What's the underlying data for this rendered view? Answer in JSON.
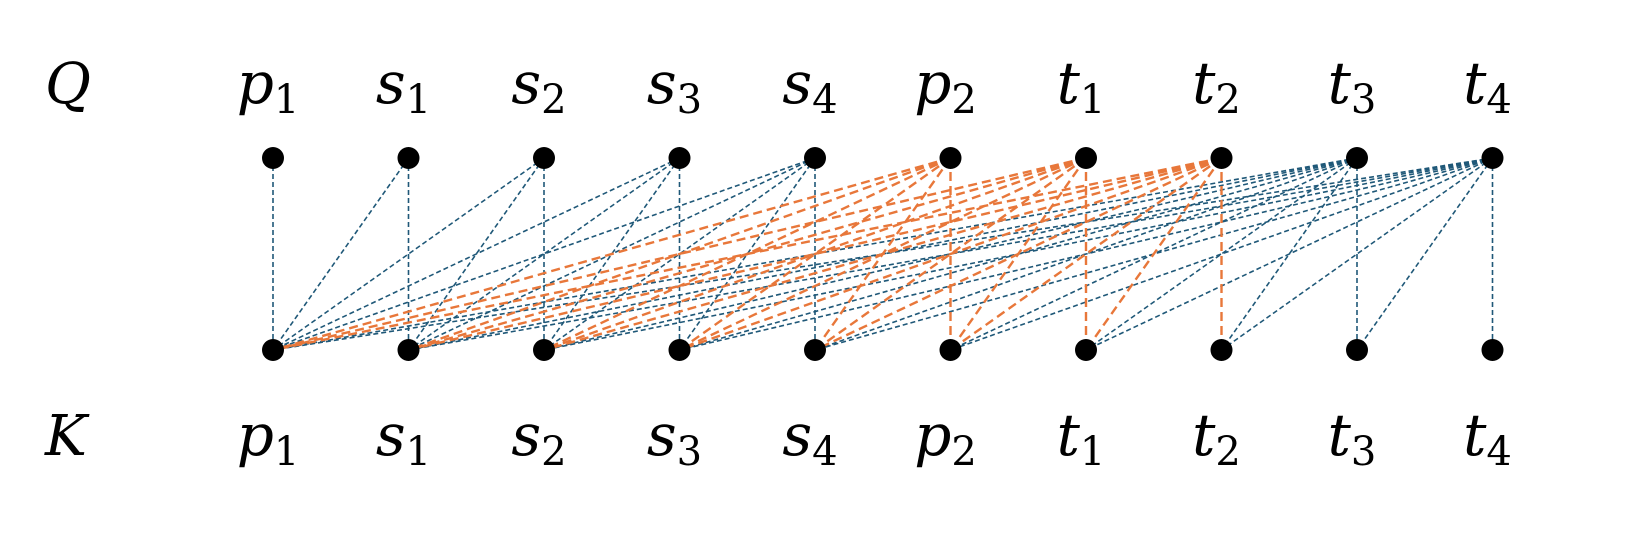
{
  "rows": {
    "top_label": "Q",
    "bottom_label": "K"
  },
  "tokens": [
    {
      "id": "p1",
      "base": "p",
      "sub": "1"
    },
    {
      "id": "s1",
      "base": "s",
      "sub": "1"
    },
    {
      "id": "s2",
      "base": "s",
      "sub": "2"
    },
    {
      "id": "s3",
      "base": "s",
      "sub": "3"
    },
    {
      "id": "s4",
      "base": "s",
      "sub": "4"
    },
    {
      "id": "p2",
      "base": "p",
      "sub": "2"
    },
    {
      "id": "t1",
      "base": "t",
      "sub": "1"
    },
    {
      "id": "t2",
      "base": "t",
      "sub": "2"
    },
    {
      "id": "t3",
      "base": "t",
      "sub": "3"
    },
    {
      "id": "t4",
      "base": "t",
      "sub": "4"
    }
  ],
  "colors": {
    "node": "#000000",
    "edge_blue": "#1f5878",
    "edge_orange": "#e8773a"
  },
  "edges": [
    {
      "q": 0,
      "k": 0,
      "color": "blue"
    },
    {
      "q": 1,
      "k": 0,
      "color": "blue"
    },
    {
      "q": 1,
      "k": 1,
      "color": "blue"
    },
    {
      "q": 2,
      "k": 0,
      "color": "blue"
    },
    {
      "q": 2,
      "k": 1,
      "color": "blue"
    },
    {
      "q": 2,
      "k": 2,
      "color": "blue"
    },
    {
      "q": 3,
      "k": 0,
      "color": "blue"
    },
    {
      "q": 3,
      "k": 1,
      "color": "blue"
    },
    {
      "q": 3,
      "k": 2,
      "color": "blue"
    },
    {
      "q": 3,
      "k": 3,
      "color": "blue"
    },
    {
      "q": 4,
      "k": 0,
      "color": "blue"
    },
    {
      "q": 4,
      "k": 1,
      "color": "blue"
    },
    {
      "q": 4,
      "k": 2,
      "color": "blue"
    },
    {
      "q": 4,
      "k": 3,
      "color": "blue"
    },
    {
      "q": 4,
      "k": 4,
      "color": "blue"
    },
    {
      "q": 5,
      "k": 0,
      "color": "orange"
    },
    {
      "q": 5,
      "k": 1,
      "color": "orange"
    },
    {
      "q": 5,
      "k": 2,
      "color": "orange"
    },
    {
      "q": 5,
      "k": 3,
      "color": "orange"
    },
    {
      "q": 5,
      "k": 4,
      "color": "orange"
    },
    {
      "q": 5,
      "k": 5,
      "color": "orange"
    },
    {
      "q": 6,
      "k": 0,
      "color": "orange"
    },
    {
      "q": 6,
      "k": 1,
      "color": "orange"
    },
    {
      "q": 6,
      "k": 2,
      "color": "orange"
    },
    {
      "q": 6,
      "k": 3,
      "color": "orange"
    },
    {
      "q": 6,
      "k": 4,
      "color": "orange"
    },
    {
      "q": 6,
      "k": 5,
      "color": "orange"
    },
    {
      "q": 6,
      "k": 6,
      "color": "orange"
    },
    {
      "q": 7,
      "k": 0,
      "color": "orange"
    },
    {
      "q": 7,
      "k": 1,
      "color": "orange"
    },
    {
      "q": 7,
      "k": 2,
      "color": "orange"
    },
    {
      "q": 7,
      "k": 3,
      "color": "orange"
    },
    {
      "q": 7,
      "k": 4,
      "color": "orange"
    },
    {
      "q": 7,
      "k": 5,
      "color": "orange"
    },
    {
      "q": 7,
      "k": 6,
      "color": "orange"
    },
    {
      "q": 7,
      "k": 7,
      "color": "orange"
    },
    {
      "q": 8,
      "k": 0,
      "color": "blue"
    },
    {
      "q": 8,
      "k": 1,
      "color": "blue"
    },
    {
      "q": 8,
      "k": 2,
      "color": "blue"
    },
    {
      "q": 8,
      "k": 3,
      "color": "blue"
    },
    {
      "q": 8,
      "k": 4,
      "color": "blue"
    },
    {
      "q": 8,
      "k": 5,
      "color": "blue"
    },
    {
      "q": 8,
      "k": 6,
      "color": "blue"
    },
    {
      "q": 8,
      "k": 7,
      "color": "blue"
    },
    {
      "q": 8,
      "k": 8,
      "color": "blue"
    },
    {
      "q": 9,
      "k": 0,
      "color": "blue"
    },
    {
      "q": 9,
      "k": 1,
      "color": "blue"
    },
    {
      "q": 9,
      "k": 2,
      "color": "blue"
    },
    {
      "q": 9,
      "k": 3,
      "color": "blue"
    },
    {
      "q": 9,
      "k": 4,
      "color": "blue"
    },
    {
      "q": 9,
      "k": 5,
      "color": "blue"
    },
    {
      "q": 9,
      "k": 6,
      "color": "blue"
    },
    {
      "q": 9,
      "k": 7,
      "color": "blue"
    },
    {
      "q": 9,
      "k": 8,
      "color": "blue"
    },
    {
      "q": 9,
      "k": 9,
      "color": "blue"
    }
  ]
}
